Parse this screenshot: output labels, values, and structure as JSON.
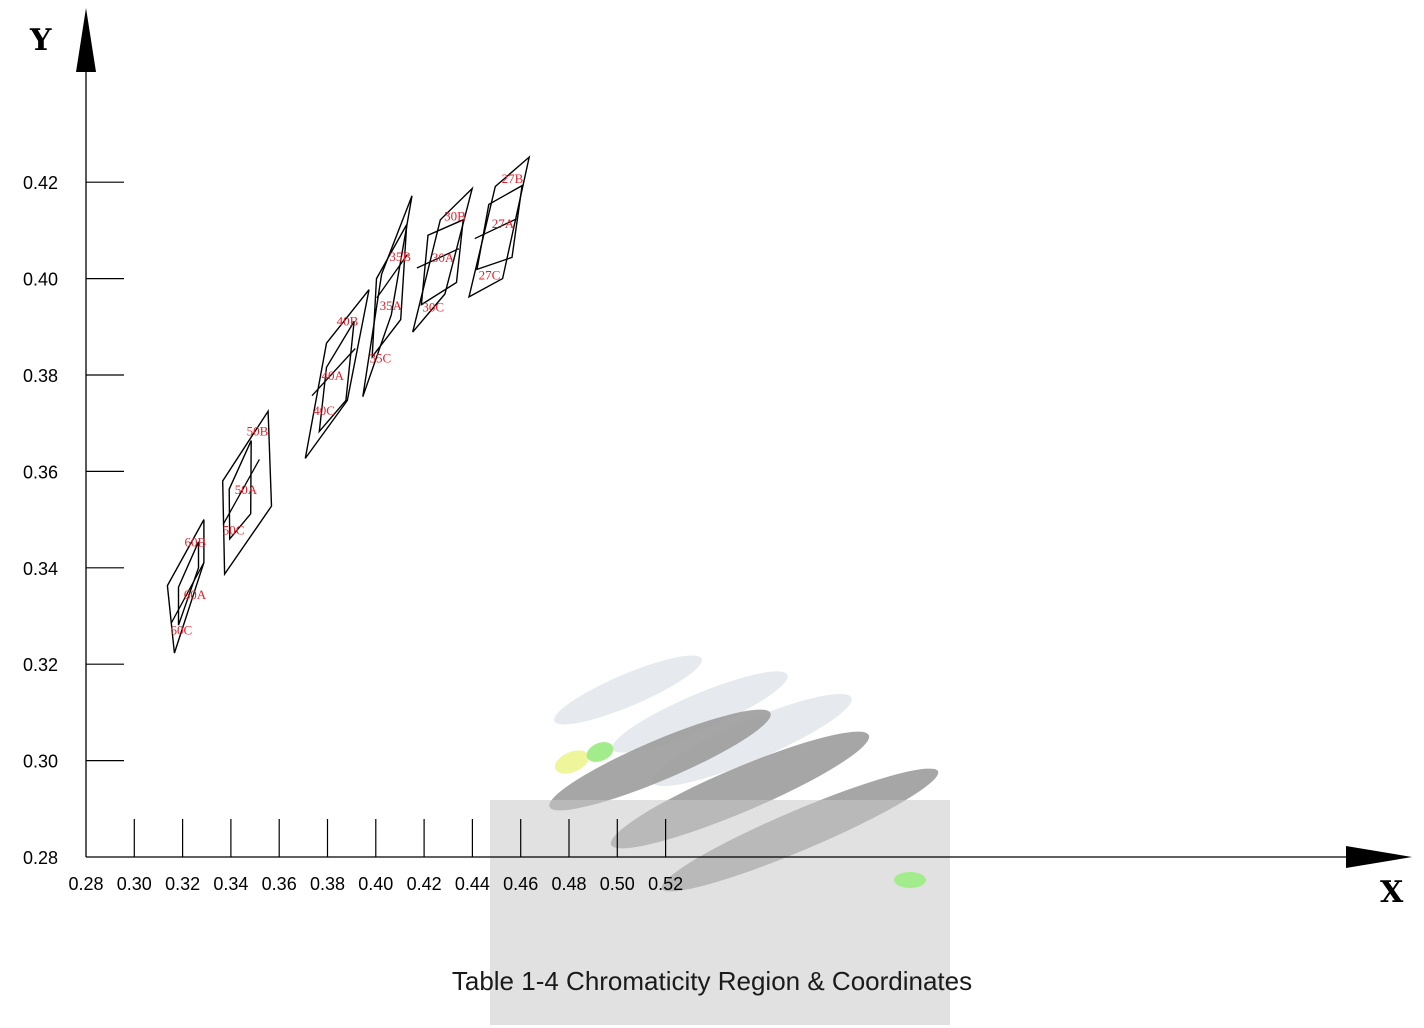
{
  "caption": "Table 1-4 Chromaticity Region & Coordinates",
  "chart_data": {
    "type": "diagram",
    "title": "",
    "xlabel": "X",
    "ylabel": "Y",
    "xlim": [
      0.28,
      0.54
    ],
    "ylim": [
      0.28,
      0.44
    ],
    "x_ticks": [
      "0.28",
      "0.30",
      "0.32",
      "0.34",
      "0.36",
      "0.38",
      "0.40",
      "0.42",
      "0.44",
      "0.46",
      "0.48",
      "0.50",
      "0.52"
    ],
    "y_ticks": [
      "0.28",
      "0.30",
      "0.32",
      "0.34",
      "0.36",
      "0.38",
      "0.40",
      "0.42"
    ],
    "grid": false,
    "colors": {
      "outline": "#000000",
      "label": "#e8202a"
    },
    "regions": [
      {
        "cct": "60",
        "outer": [
          [
            0.3166,
            0.3223
          ],
          [
            0.3288,
            0.3411
          ],
          [
            0.3288,
            0.35
          ],
          [
            0.3137,
            0.3363
          ]
        ],
        "inner": [
          [
            0.3183,
            0.3281
          ],
          [
            0.3266,
            0.34
          ],
          [
            0.3266,
            0.3454
          ],
          [
            0.3183,
            0.336
          ]
        ],
        "split": [
          [
            0.3154,
            0.3286
          ],
          [
            0.3288,
            0.3411
          ]
        ],
        "labels": [
          {
            "text": "60A",
            "x": 0.3205,
            "y": 0.3335
          },
          {
            "text": "60B",
            "x": 0.3208,
            "y": 0.3444
          },
          {
            "text": "60C",
            "x": 0.315,
            "y": 0.3262
          }
        ]
      },
      {
        "cct": "50",
        "outer": [
          [
            0.3374,
            0.3387
          ],
          [
            0.3568,
            0.3528
          ],
          [
            0.3554,
            0.3725
          ],
          [
            0.3366,
            0.358
          ]
        ],
        "inner": [
          [
            0.3395,
            0.346
          ],
          [
            0.3482,
            0.3512
          ],
          [
            0.3484,
            0.3664
          ],
          [
            0.3393,
            0.3563
          ]
        ],
        "split": [
          [
            0.3368,
            0.349
          ],
          [
            0.3518,
            0.3625
          ]
        ],
        "labels": [
          {
            "text": "50A",
            "x": 0.3416,
            "y": 0.3553
          },
          {
            "text": "50B",
            "x": 0.3465,
            "y": 0.3674
          },
          {
            "text": "50C",
            "x": 0.3366,
            "y": 0.3469
          }
        ]
      },
      {
        "cct": "40",
        "outer": [
          [
            0.3708,
            0.3627
          ],
          [
            0.3882,
            0.3747
          ],
          [
            0.3972,
            0.3977
          ],
          [
            0.3796,
            0.3866
          ]
        ],
        "inner": [
          [
            0.3766,
            0.3683
          ],
          [
            0.3876,
            0.3747
          ],
          [
            0.391,
            0.3911
          ],
          [
            0.3796,
            0.3816
          ]
        ],
        "split": [
          [
            0.3736,
            0.3757
          ],
          [
            0.3915,
            0.3855
          ]
        ],
        "labels": [
          {
            "text": "40A",
            "x": 0.3775,
            "y": 0.379
          },
          {
            "text": "40B",
            "x": 0.3838,
            "y": 0.3903
          },
          {
            "text": "40C",
            "x": 0.3741,
            "y": 0.3717
          }
        ]
      },
      {
        "cct": "35",
        "outer": [
          [
            0.3946,
            0.3755
          ],
          [
            0.4064,
            0.3925
          ],
          [
            0.415,
            0.4172
          ],
          [
            0.4024,
            0.4009
          ]
        ],
        "inner": [
          [
            0.3985,
            0.3838
          ],
          [
            0.4103,
            0.3915
          ],
          [
            0.4128,
            0.4112
          ],
          [
            0.4003,
            0.4
          ]
        ],
        "split": [
          [
            0.4004,
            0.396
          ],
          [
            0.4131,
            0.405
          ]
        ],
        "labels": [
          {
            "text": "35A",
            "x": 0.4016,
            "y": 0.3935
          },
          {
            "text": "35B",
            "x": 0.4056,
            "y": 0.4037
          },
          {
            "text": "35C",
            "x": 0.3974,
            "y": 0.3826
          }
        ]
      },
      {
        "cct": "30",
        "outer": [
          [
            0.4153,
            0.3889
          ],
          [
            0.4286,
            0.3968
          ],
          [
            0.4399,
            0.4187
          ],
          [
            0.4267,
            0.4122
          ]
        ],
        "inner": [
          [
            0.4189,
            0.3946
          ],
          [
            0.4334,
            0.3992
          ],
          [
            0.4362,
            0.4122
          ],
          [
            0.4216,
            0.409
          ]
        ],
        "split": [
          [
            0.417,
            0.4022
          ],
          [
            0.4344,
            0.4062
          ]
        ],
        "labels": [
          {
            "text": "30A",
            "x": 0.4232,
            "y": 0.4034
          },
          {
            "text": "30B",
            "x": 0.4283,
            "y": 0.4121
          },
          {
            "text": "30C",
            "x": 0.4193,
            "y": 0.3932
          }
        ]
      },
      {
        "cct": "27",
        "outer": [
          [
            0.4386,
            0.3962
          ],
          [
            0.4525,
            0.4
          ],
          [
            0.4635,
            0.4252
          ],
          [
            0.4495,
            0.4191
          ]
        ],
        "inner": [
          [
            0.4419,
            0.4019
          ],
          [
            0.4564,
            0.4044
          ],
          [
            0.4606,
            0.4193
          ],
          [
            0.4468,
            0.4154
          ]
        ],
        "split": [
          [
            0.441,
            0.4083
          ],
          [
            0.4583,
            0.4124
          ]
        ],
        "labels": [
          {
            "text": "27A",
            "x": 0.448,
            "y": 0.4105
          },
          {
            "text": "27B",
            "x": 0.4521,
            "y": 0.4198
          },
          {
            "text": "27C",
            "x": 0.4426,
            "y": 0.3998
          }
        ]
      }
    ]
  }
}
